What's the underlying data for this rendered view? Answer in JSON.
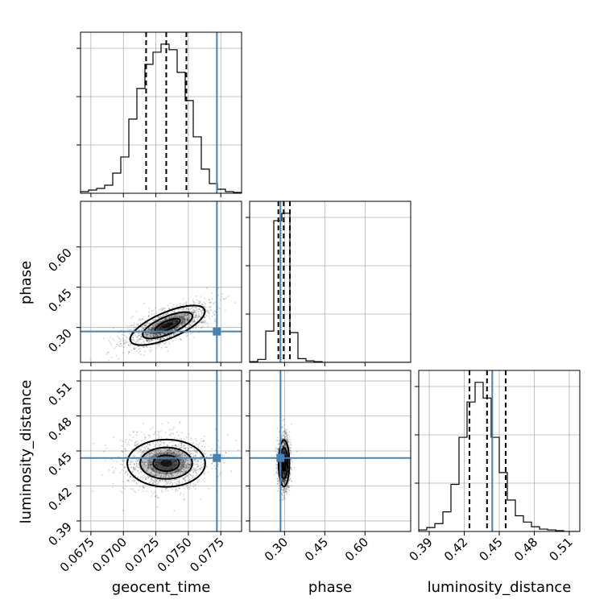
{
  "chart_data": {
    "type": "corner",
    "parameters": [
      "geocent_time",
      "phase",
      "luminosity_distance"
    ],
    "truths": {
      "geocent_time": 0.0772,
      "phase": 0.285,
      "luminosity_distance": 0.444
    },
    "truth_color": "#4682b4",
    "grid": true,
    "axes": {
      "geocent_time": {
        "label": "geocent_time",
        "range": [
          0.0667,
          0.0791
        ],
        "ticks": [
          0.0675,
          0.07,
          0.0725,
          0.075,
          0.0775
        ],
        "ticklabels": [
          "0.0675",
          "0.0700",
          "0.0725",
          "0.0750",
          "0.0775"
        ]
      },
      "phase": {
        "label": "phase",
        "range": [
          0.17,
          0.77
        ],
        "ticks": [
          0.3,
          0.45,
          0.6
        ],
        "ticklabels": [
          "0.30",
          "0.45",
          "0.60"
        ]
      },
      "luminosity_distance": {
        "label": "luminosity_distance",
        "range": [
          0.381,
          0.519
        ],
        "ticks": [
          0.39,
          0.42,
          0.45,
          0.48,
          0.51
        ],
        "ticklabels": [
          "0.39",
          "0.42",
          "0.45",
          "0.48",
          "0.51"
        ]
      }
    },
    "histograms": {
      "geocent_time": {
        "bin_edges": [
          0.0667,
          0.06732,
          0.06794,
          0.06856,
          0.06918,
          0.0698,
          0.07042,
          0.07104,
          0.07166,
          0.07228,
          0.0729,
          0.07352,
          0.07414,
          0.07476,
          0.07538,
          0.076,
          0.07662,
          0.07724,
          0.07786,
          0.07848,
          0.0791
        ],
        "counts": [
          2,
          4,
          6,
          10,
          25,
          45,
          92,
          130,
          160,
          175,
          185,
          178,
          150,
          115,
          70,
          30,
          12,
          5,
          2,
          1
        ],
        "quantiles": [
          0.07175,
          0.0733,
          0.07485
        ]
      },
      "phase": {
        "bin_edges": [
          0.17,
          0.2,
          0.23,
          0.26,
          0.29,
          0.32,
          0.35,
          0.38,
          0.41,
          0.44,
          0.47,
          0.5,
          0.53,
          0.56,
          0.59,
          0.62,
          0.65,
          0.68,
          0.71,
          0.74,
          0.77
        ],
        "counts": [
          1,
          4,
          42,
          190,
          200,
          40,
          5,
          2,
          1,
          0,
          0,
          0,
          0,
          0,
          0,
          0,
          0,
          0,
          0,
          0
        ],
        "quantiles": [
          0.277,
          0.297,
          0.32
        ]
      },
      "luminosity_distance": {
        "bin_edges": [
          0.381,
          0.3879,
          0.3948,
          0.4017,
          0.4086,
          0.4155,
          0.4224,
          0.4293,
          0.4362,
          0.4431,
          0.45,
          0.4569,
          0.4638,
          0.4707,
          0.4776,
          0.4845,
          0.4914,
          0.4983,
          0.5052,
          0.5121,
          0.519
        ],
        "counts": [
          2,
          5,
          10,
          25,
          60,
          120,
          165,
          190,
          170,
          120,
          75,
          40,
          20,
          12,
          6,
          3,
          2,
          1,
          0,
          0
        ],
        "quantiles": [
          0.4245,
          0.4395,
          0.4555
        ]
      }
    },
    "contours": {
      "phase_vs_geocent_time": {
        "center": [
          0.0734,
          0.308
        ],
        "sigma": [
          0.00165,
          0.026
        ],
        "rotation_deg": 23,
        "levels_sigma": [
          0.5,
          1.0,
          1.5
        ]
      },
      "luminosity_distance_vs_geocent_time": {
        "center": [
          0.0733,
          0.4395
        ],
        "sigma": [
          0.0016,
          0.0108
        ],
        "rotation_deg": 0,
        "levels_sigma": [
          0.5,
          1.0,
          1.5
        ]
      },
      "luminosity_distance_vs_phase": {
        "center": [
          0.298,
          0.4395
        ],
        "sigma": [
          0.0107,
          0.0106
        ],
        "rotation_deg": 0,
        "levels_sigma": [
          0.5,
          1.0,
          1.5
        ]
      }
    }
  }
}
